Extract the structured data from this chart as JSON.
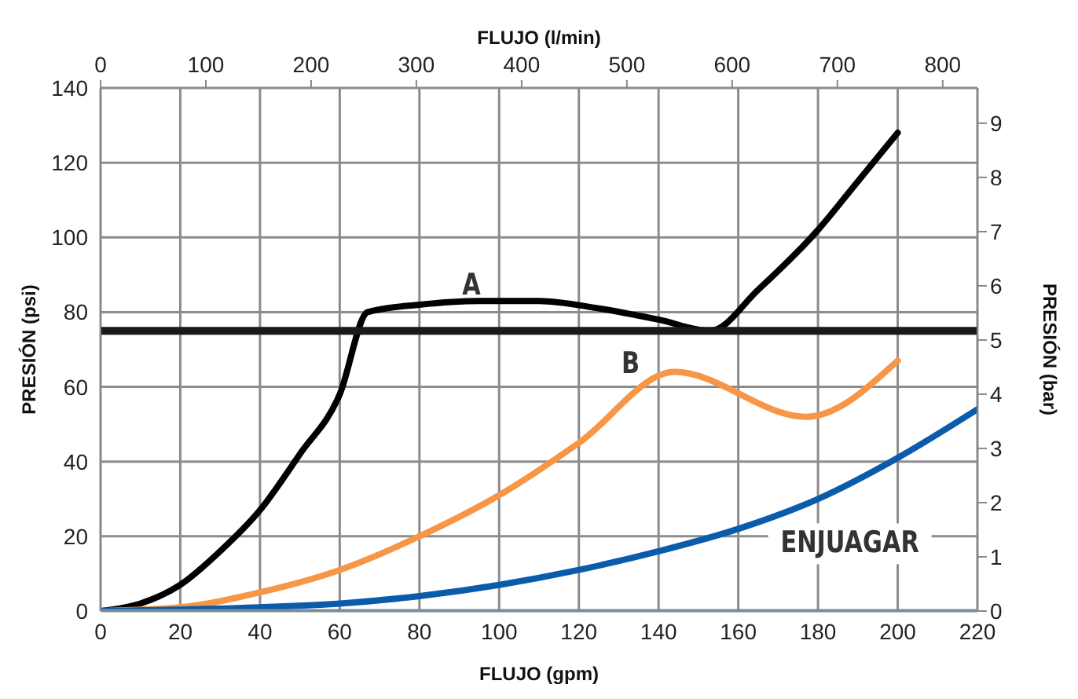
{
  "chart_data": {
    "type": "line",
    "xlabel": "FLUJO (gpm)",
    "x2label": "FLUJO (l/min)",
    "ylabel": "PRESIÓN (psi)",
    "y2label": "PRESIÓN (bar)",
    "xlim": [
      0,
      220
    ],
    "xticks": [
      0,
      20,
      40,
      60,
      80,
      100,
      120,
      140,
      160,
      180,
      200,
      220
    ],
    "ylim": [
      0,
      140
    ],
    "yticks": [
      0,
      20,
      40,
      60,
      80,
      100,
      120,
      140
    ],
    "x2lim": [
      0,
      833
    ],
    "x2ticks": [
      0,
      100,
      200,
      300,
      400,
      500,
      600,
      700,
      800
    ],
    "y2lim": [
      0,
      9.65
    ],
    "y2ticks": [
      0,
      1,
      2,
      3,
      4,
      5,
      6,
      7,
      8,
      9
    ],
    "grid": true,
    "legend": false,
    "marker": "none",
    "line_style": "solid",
    "series": [
      {
        "color": "#000000",
        "x": [
          0,
          10,
          20,
          30,
          40,
          50,
          60,
          67,
          80,
          95,
          110,
          125,
          140,
          153,
          165,
          180,
          190,
          200
        ],
        "values": [
          0,
          2,
          7,
          16,
          27,
          42,
          58,
          80,
          82,
          83,
          83,
          81,
          78,
          75,
          86,
          102,
          115,
          128
        ]
      },
      {
        "color": "#f79646",
        "x": [
          0,
          20,
          40,
          60,
          80,
          100,
          120,
          144,
          177,
          200
        ],
        "values": [
          0,
          1,
          5,
          11,
          20,
          31,
          45,
          64,
          52,
          67
        ]
      },
      {
        "color": "#0a5caa",
        "x": [
          0,
          40,
          60,
          80,
          100,
          120,
          140,
          160,
          180,
          200,
          220
        ],
        "values": [
          0,
          1,
          2,
          4,
          7,
          11,
          16,
          22,
          30,
          41,
          54
        ]
      },
      {
        "color": "#5b8fd6",
        "x": [
          0,
          220
        ],
        "values": [
          0,
          0
        ]
      }
    ],
    "ref_lines": [
      {
        "axis": "y",
        "value": 75,
        "color": "#1a1a1a"
      }
    ],
    "annotations": [
      "A",
      "B",
      "ENJUAGAR"
    ]
  }
}
